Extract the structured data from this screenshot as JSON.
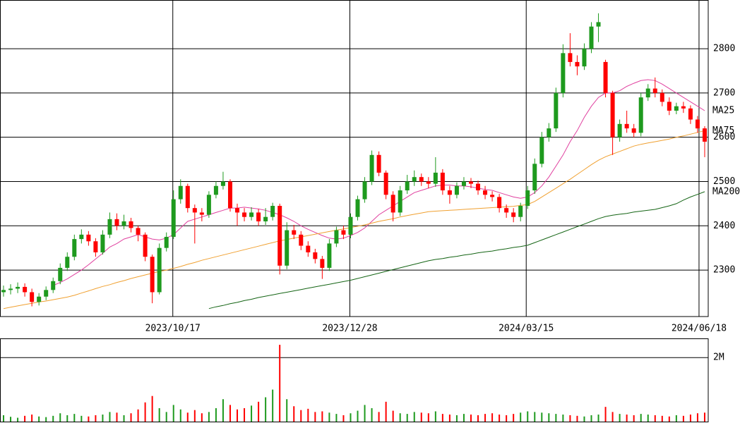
{
  "chart_data": [
    {
      "type": "candlestick",
      "xlim": [
        0,
        100
      ],
      "xticks": [
        {
          "value": 24.4,
          "label": "2023/10/17"
        },
        {
          "value": 49.4,
          "label": "2023/12/28"
        },
        {
          "value": 74.3,
          "label": "2024/03/15"
        },
        {
          "value": 98.7,
          "label": "2024/06/18"
        }
      ],
      "ylim": [
        2195,
        2910
      ],
      "yticks": [
        2300,
        2400,
        2500,
        2600,
        2700,
        2800
      ],
      "grid": true,
      "up_color": "#1e9a1e",
      "down_color": "#ff0000",
      "open": [
        2250,
        2255,
        2258,
        2262,
        2250,
        2228,
        2240,
        2255,
        2275,
        2305,
        2330,
        2370,
        2380,
        2365,
        2340,
        2380,
        2415,
        2400,
        2410,
        2395,
        2380,
        2330,
        2250,
        2350,
        2375,
        2460,
        2490,
        2440,
        2430,
        2425,
        2470,
        2490,
        2500,
        2440,
        2430,
        2420,
        2430,
        2410,
        2420,
        2445,
        2310,
        2390,
        2380,
        2355,
        2340,
        2325,
        2305,
        2360,
        2390,
        2380,
        2420,
        2460,
        2500,
        2560,
        2520,
        2470,
        2430,
        2480,
        2500,
        2510,
        2500,
        2495,
        2520,
        2480,
        2470,
        2490,
        2500,
        2495,
        2480,
        2470,
        2465,
        2440,
        2430,
        2420,
        2445,
        2480,
        2540,
        2600,
        2620,
        2700,
        2790,
        2770,
        2760,
        2800,
        2850,
        2770,
        2700,
        2600,
        2630,
        2620,
        2610,
        2690,
        2710,
        2700,
        2680,
        2660,
        2670,
        2665,
        2640,
        2620
      ],
      "high": [
        2265,
        2268,
        2272,
        2270,
        2258,
        2248,
        2263,
        2283,
        2315,
        2340,
        2380,
        2392,
        2388,
        2372,
        2390,
        2430,
        2428,
        2425,
        2418,
        2400,
        2385,
        2335,
        2360,
        2385,
        2480,
        2505,
        2495,
        2448,
        2440,
        2478,
        2500,
        2522,
        2505,
        2450,
        2440,
        2442,
        2438,
        2440,
        2452,
        2450,
        2408,
        2402,
        2388,
        2365,
        2348,
        2332,
        2370,
        2398,
        2400,
        2428,
        2468,
        2510,
        2570,
        2568,
        2525,
        2478,
        2490,
        2515,
        2525,
        2518,
        2510,
        2555,
        2528,
        2490,
        2498,
        2510,
        2508,
        2502,
        2490,
        2478,
        2472,
        2448,
        2440,
        2452,
        2490,
        2552,
        2612,
        2632,
        2712,
        2810,
        2835,
        2785,
        2812,
        2860,
        2880,
        2775,
        2705,
        2640,
        2660,
        2630,
        2700,
        2720,
        2735,
        2708,
        2690,
        2678,
        2680,
        2672,
        2648,
        2625
      ],
      "low": [
        2240,
        2245,
        2248,
        2240,
        2218,
        2220,
        2232,
        2248,
        2268,
        2298,
        2322,
        2360,
        2355,
        2330,
        2335,
        2372,
        2390,
        2392,
        2385,
        2365,
        2320,
        2225,
        2245,
        2342,
        2370,
        2450,
        2430,
        2360,
        2410,
        2418,
        2462,
        2482,
        2432,
        2400,
        2410,
        2412,
        2400,
        2402,
        2412,
        2290,
        2302,
        2370,
        2345,
        2330,
        2315,
        2280,
        2298,
        2352,
        2370,
        2372,
        2412,
        2452,
        2492,
        2512,
        2460,
        2410,
        2422,
        2472,
        2490,
        2490,
        2485,
        2488,
        2470,
        2450,
        2462,
        2482,
        2485,
        2470,
        2460,
        2455,
        2430,
        2418,
        2408,
        2410,
        2438,
        2472,
        2532,
        2590,
        2612,
        2690,
        2760,
        2740,
        2752,
        2790,
        2815,
        2690,
        2560,
        2590,
        2610,
        2600,
        2602,
        2682,
        2690,
        2670,
        2650,
        2652,
        2655,
        2630,
        2610,
        2555
      ],
      "close": [
        2255,
        2258,
        2262,
        2250,
        2228,
        2240,
        2255,
        2275,
        2305,
        2330,
        2370,
        2380,
        2365,
        2340,
        2380,
        2415,
        2400,
        2410,
        2395,
        2380,
        2330,
        2250,
        2350,
        2375,
        2460,
        2490,
        2440,
        2430,
        2425,
        2470,
        2490,
        2500,
        2440,
        2430,
        2420,
        2430,
        2410,
        2420,
        2445,
        2310,
        2390,
        2380,
        2355,
        2340,
        2325,
        2305,
        2360,
        2390,
        2380,
        2420,
        2460,
        2500,
        2560,
        2520,
        2470,
        2430,
        2480,
        2500,
        2510,
        2500,
        2495,
        2520,
        2480,
        2470,
        2490,
        2500,
        2495,
        2480,
        2470,
        2465,
        2440,
        2430,
        2420,
        2445,
        2480,
        2540,
        2600,
        2620,
        2700,
        2790,
        2770,
        2760,
        2800,
        2850,
        2860,
        2700,
        2600,
        2630,
        2620,
        2610,
        2690,
        2710,
        2700,
        2680,
        2660,
        2670,
        2665,
        2640,
        2620,
        2590
      ],
      "lines": [
        {
          "name": "MA25",
          "color": "#e0409f",
          "values": [
            null,
            null,
            null,
            null,
            null,
            null,
            null,
            2265,
            2272,
            2280,
            2290,
            2300,
            2312,
            2325,
            2338,
            2352,
            2360,
            2370,
            2375,
            2380,
            2375,
            2370,
            2368,
            2372,
            2380,
            2395,
            2410,
            2415,
            2420,
            2425,
            2430,
            2435,
            2440,
            2440,
            2442,
            2440,
            2438,
            2435,
            2430,
            2425,
            2418,
            2410,
            2400,
            2392,
            2385,
            2378,
            2372,
            2370,
            2372,
            2378,
            2385,
            2395,
            2410,
            2425,
            2435,
            2445,
            2455,
            2465,
            2475,
            2480,
            2485,
            2490,
            2492,
            2492,
            2490,
            2490,
            2488,
            2485,
            2482,
            2480,
            2475,
            2470,
            2465,
            2462,
            2465,
            2475,
            2490,
            2510,
            2535,
            2560,
            2590,
            2615,
            2645,
            2670,
            2690,
            2700,
            2700,
            2705,
            2715,
            2722,
            2728,
            2730,
            2728,
            2720,
            2710,
            2700,
            2690,
            2680,
            2670,
            2660
          ]
        },
        {
          "name": "MA75",
          "color": "#f0a030",
          "values": [
            2213,
            2216,
            2219,
            2222,
            2225,
            2228,
            2230,
            2233,
            2236,
            2239,
            2243,
            2248,
            2253,
            2258,
            2263,
            2267,
            2272,
            2276,
            2281,
            2285,
            2289,
            2293,
            2297,
            2300,
            2304,
            2308,
            2313,
            2317,
            2322,
            2326,
            2330,
            2334,
            2338,
            2342,
            2346,
            2350,
            2354,
            2358,
            2362,
            2366,
            2369,
            2372,
            2375,
            2378,
            2381,
            2384,
            2387,
            2390,
            2393,
            2396,
            2399,
            2402,
            2406,
            2410,
            2413,
            2416,
            2420,
            2423,
            2426,
            2429,
            2432,
            2433,
            2434,
            2435,
            2436,
            2437,
            2438,
            2439,
            2440,
            2441,
            2442,
            2443,
            2444,
            2446,
            2448,
            2455,
            2465,
            2475,
            2485,
            2495,
            2505,
            2516,
            2527,
            2538,
            2548,
            2556,
            2562,
            2568,
            2574,
            2580,
            2584,
            2587,
            2590,
            2593,
            2596,
            2600,
            2603,
            2607,
            2611,
            2615
          ]
        },
        {
          "name": "MA200",
          "color": "#146414",
          "values": [
            null,
            null,
            null,
            null,
            null,
            null,
            null,
            null,
            null,
            null,
            null,
            null,
            null,
            null,
            null,
            null,
            null,
            null,
            null,
            null,
            null,
            null,
            null,
            null,
            null,
            null,
            null,
            null,
            null,
            2213,
            2217,
            2220,
            2224,
            2227,
            2231,
            2234,
            2238,
            2241,
            2244,
            2247,
            2250,
            2253,
            2256,
            2259,
            2262,
            2265,
            2268,
            2271,
            2274,
            2277,
            2281,
            2285,
            2289,
            2293,
            2297,
            2301,
            2305,
            2309,
            2313,
            2317,
            2321,
            2324,
            2326,
            2329,
            2331,
            2334,
            2336,
            2339,
            2341,
            2343,
            2346,
            2348,
            2351,
            2353,
            2356,
            2362,
            2368,
            2374,
            2380,
            2386,
            2392,
            2398,
            2404,
            2410,
            2416,
            2421,
            2424,
            2426,
            2428,
            2431,
            2433,
            2435,
            2437,
            2441,
            2445,
            2450,
            2458,
            2465,
            2471,
            2477
          ]
        }
      ]
    },
    {
      "type": "bar",
      "ylim": [
        0,
        2600000
      ],
      "yticks": [
        {
          "value": 2000000,
          "label": "2M"
        }
      ],
      "grid": true,
      "values": [
        200000,
        150000,
        120000,
        180000,
        220000,
        160000,
        140000,
        180000,
        260000,
        200000,
        240000,
        180000,
        160000,
        200000,
        220000,
        300000,
        280000,
        200000,
        260000,
        380000,
        600000,
        800000,
        420000,
        300000,
        520000,
        380000,
        280000,
        360000,
        260000,
        300000,
        420000,
        700000,
        520000,
        380000,
        420000,
        500000,
        620000,
        760000,
        1000000,
        2400000,
        700000,
        480000,
        360000,
        400000,
        300000,
        320000,
        280000,
        240000,
        200000,
        260000,
        340000,
        520000,
        420000,
        300000,
        620000,
        340000,
        260000,
        240000,
        300000,
        280000,
        260000,
        320000,
        240000,
        220000,
        200000,
        240000,
        220000,
        200000,
        240000,
        260000,
        220000,
        200000,
        240000,
        280000,
        320000,
        300000,
        280000,
        260000,
        240000,
        220000,
        200000,
        180000,
        160000,
        200000,
        220000,
        460000,
        300000,
        240000,
        220000,
        200000,
        240000,
        220000,
        200000,
        180000,
        160000,
        200000,
        180000,
        220000,
        260000,
        280000
      ]
    }
  ]
}
